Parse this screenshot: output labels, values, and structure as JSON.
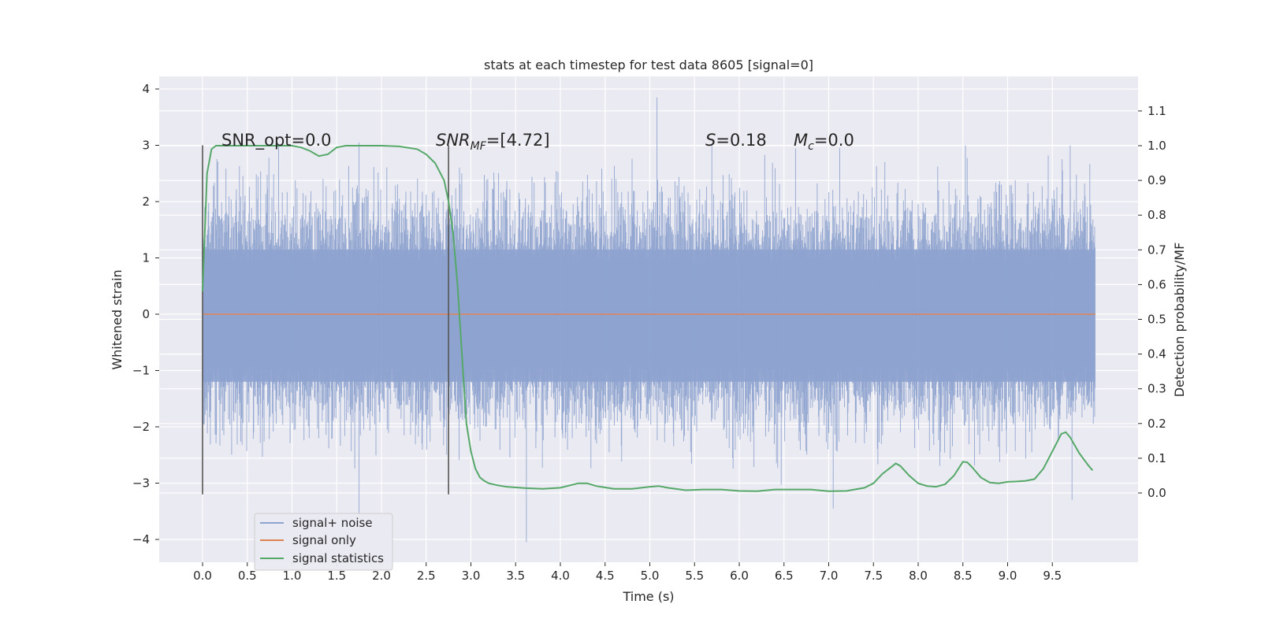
{
  "chart_data": {
    "type": "line",
    "title": "stats at each timestep for test data 8605 [signal=0]",
    "xlabel": "Time (s)",
    "ylabel": "Whitened strain",
    "ylabel_right": "Detection probability/MF",
    "xlim": [
      -0.5,
      10.5
    ],
    "ylim": [
      -4.45,
      4.2
    ],
    "ylim_right": [
      -0.2,
      1.2
    ],
    "x_ticks": [
      "0.0",
      "0.5",
      "1.0",
      "1.5",
      "2.0",
      "2.5",
      "3.0",
      "3.5",
      "4.0",
      "4.5",
      "5.0",
      "5.5",
      "6.0",
      "6.5",
      "7.0",
      "7.5",
      "8.0",
      "8.5",
      "9.0",
      "9.5"
    ],
    "y_ticks": [
      "−4",
      "−3",
      "−2",
      "−1",
      "0",
      "1",
      "2",
      "3",
      "4"
    ],
    "y_ticks_right": [
      "0.0",
      "0.1",
      "0.2",
      "0.3",
      "0.4",
      "0.5",
      "0.6",
      "0.7",
      "0.8",
      "0.9",
      "1.0",
      "1.1"
    ],
    "grid": true,
    "legend_position": "bottom-left",
    "annotations": {
      "snr_opt": "SNR_opt=0.0",
      "snr_mf_main": "SNR",
      "snr_mf_sub": "MF",
      "snr_mf_value": "=[4.72]",
      "s_main": "S",
      "s_value": "=0.18",
      "mc_main": "M",
      "mc_sub": "c",
      "mc_value": "=0.0"
    },
    "vertical_markers": [
      {
        "x": 0.0,
        "y_range": [
          -3.2,
          3.0
        ]
      },
      {
        "x": 2.75,
        "y_range": [
          -3.2,
          3.0
        ]
      }
    ],
    "series": [
      {
        "name": "signal+ noise",
        "color": "#8ea3cf",
        "x_range": [
          0.0,
          9.98
        ],
        "envelope_y": [
          -2.5,
          2.5
        ],
        "notable_peaks": [
          {
            "x": 5.08,
            "y": 3.85
          },
          {
            "x": 1.75,
            "y": 3.05
          },
          {
            "x": 0.85,
            "y": 3.0
          },
          {
            "x": 9.7,
            "y": 3.0
          },
          {
            "x": 3.62,
            "y": -4.05
          },
          {
            "x": 1.75,
            "y": -3.55
          },
          {
            "x": 9.72,
            "y": -3.3
          },
          {
            "x": 7.05,
            "y": -3.45
          }
        ]
      },
      {
        "name": "signal only",
        "color": "#dd8452",
        "x": [
          0.0,
          9.98
        ],
        "y": [
          0.0,
          0.0
        ]
      },
      {
        "name": "signal statistics",
        "color": "#55a868",
        "axis": "right",
        "x": [
          0.0,
          0.05,
          0.1,
          0.15,
          0.25,
          0.4,
          0.6,
          0.8,
          1.0,
          1.1,
          1.2,
          1.3,
          1.4,
          1.5,
          1.6,
          1.8,
          2.0,
          2.2,
          2.4,
          2.5,
          2.6,
          2.7,
          2.75,
          2.8,
          2.85,
          2.9,
          2.95,
          3.0,
          3.05,
          3.1,
          3.15,
          3.2,
          3.3,
          3.4,
          3.6,
          3.8,
          4.0,
          4.2,
          4.3,
          4.4,
          4.6,
          4.8,
          5.0,
          5.1,
          5.2,
          5.4,
          5.6,
          5.8,
          6.0,
          6.2,
          6.4,
          6.6,
          6.8,
          7.0,
          7.2,
          7.4,
          7.5,
          7.6,
          7.7,
          7.75,
          7.8,
          7.9,
          8.0,
          8.1,
          8.2,
          8.3,
          8.4,
          8.5,
          8.55,
          8.6,
          8.7,
          8.8,
          8.9,
          9.0,
          9.1,
          9.2,
          9.3,
          9.4,
          9.5,
          9.6,
          9.65,
          9.7,
          9.8,
          9.9,
          9.95
        ],
        "y": [
          0.58,
          0.92,
          0.99,
          1.0,
          1.0,
          1.0,
          1.0,
          1.0,
          1.0,
          0.995,
          0.985,
          0.97,
          0.975,
          0.995,
          1.0,
          1.0,
          1.0,
          0.998,
          0.99,
          0.975,
          0.95,
          0.9,
          0.84,
          0.75,
          0.6,
          0.4,
          0.2,
          0.12,
          0.07,
          0.045,
          0.035,
          0.028,
          0.022,
          0.018,
          0.014,
          0.012,
          0.015,
          0.028,
          0.028,
          0.02,
          0.012,
          0.012,
          0.018,
          0.02,
          0.015,
          0.008,
          0.01,
          0.01,
          0.006,
          0.005,
          0.01,
          0.01,
          0.01,
          0.005,
          0.006,
          0.015,
          0.028,
          0.055,
          0.075,
          0.085,
          0.078,
          0.05,
          0.028,
          0.02,
          0.018,
          0.025,
          0.05,
          0.09,
          0.088,
          0.075,
          0.045,
          0.03,
          0.028,
          0.032,
          0.033,
          0.035,
          0.04,
          0.07,
          0.12,
          0.17,
          0.175,
          0.16,
          0.115,
          0.08,
          0.065
        ]
      }
    ]
  }
}
